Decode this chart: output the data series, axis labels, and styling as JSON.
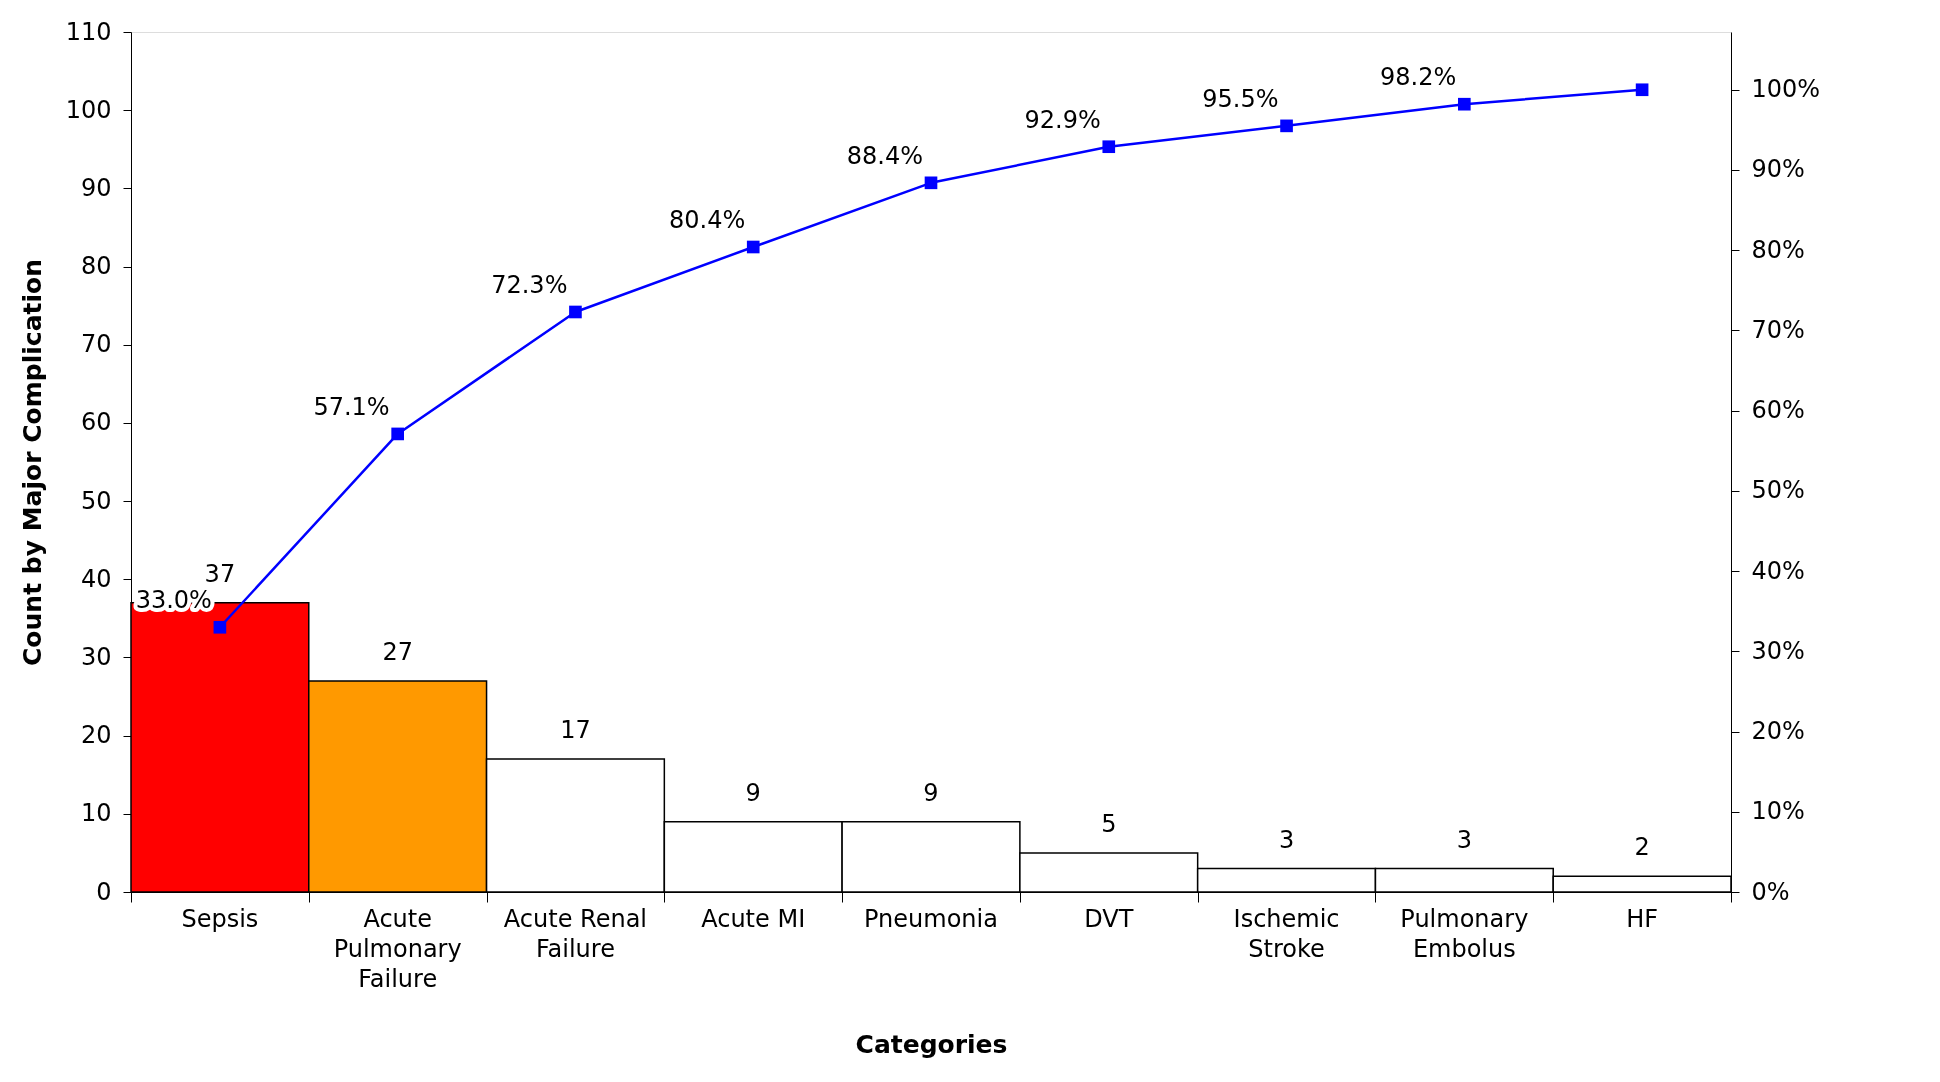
{
  "chart_data": {
    "type": "bar",
    "categories": [
      "Sepsis",
      "Acute Pulmonary Failure",
      "Acute Renal Failure",
      "Acute MI",
      "Pneumonia",
      "DVT",
      "Ischemic Stroke",
      "Pulmonary Embolus",
      "HF"
    ],
    "values": [
      37,
      27,
      17,
      9,
      9,
      5,
      3,
      3,
      2
    ],
    "colors": [
      "#ff0000",
      "#ff9900",
      "#ffffff",
      "#ffffff",
      "#ffffff",
      "#ffffff",
      "#ffffff",
      "#ffffff",
      "#ffffff"
    ],
    "data_labels": true,
    "xlabel": "Categories",
    "ylabel": "Count by Major Complication",
    "ylim": [
      0,
      110
    ],
    "yticks": [
      0,
      10,
      20,
      30,
      40,
      50,
      60,
      70,
      80,
      90,
      100,
      110
    ],
    "y2lim": [
      0,
      107.2
    ],
    "y2ticks": [
      {
        "value": 0,
        "label": "0%"
      },
      {
        "value": 10,
        "label": "10%"
      },
      {
        "value": 20,
        "label": "20%"
      },
      {
        "value": 30,
        "label": "30%"
      },
      {
        "value": 40,
        "label": "40%"
      },
      {
        "value": 50,
        "label": "50%"
      },
      {
        "value": 60,
        "label": "60%"
      },
      {
        "value": 70,
        "label": "70%"
      },
      {
        "value": 80,
        "label": "80%"
      },
      {
        "value": 90,
        "label": "90%"
      },
      {
        "value": 100,
        "label": "100%"
      }
    ],
    "grid": false,
    "series": [
      {
        "type": "line",
        "axis": "y2",
        "color": "#0000ff",
        "marker": "square",
        "values": [
          33.0,
          57.1,
          72.3,
          80.4,
          88.4,
          92.9,
          95.5,
          98.2,
          100
        ],
        "value_labels": [
          "33.0%",
          "57.1%",
          "72.3%",
          "80.4%",
          "88.4%",
          "92.9%",
          "95.5%",
          "98.2%",
          null
        ]
      }
    ]
  }
}
